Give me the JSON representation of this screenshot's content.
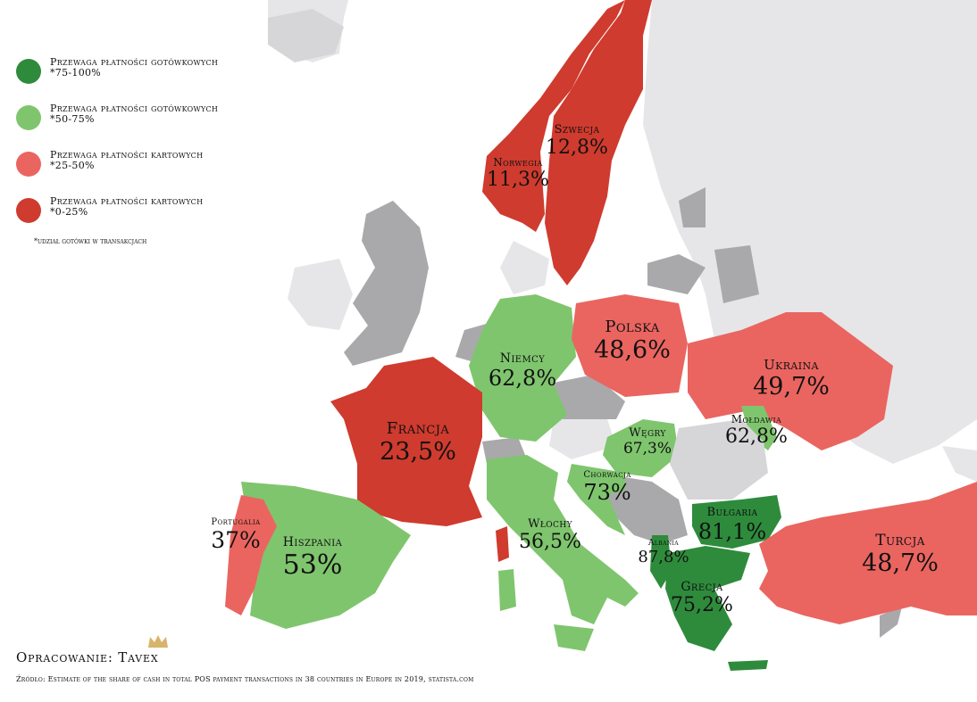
{
  "legend": {
    "items": [
      {
        "title": "Przewaga płatności gotówkowych",
        "range": "*75-100%",
        "color": "#2e8b3c"
      },
      {
        "title": "Przewaga płatności gotówkowych",
        "range": "*50-75%",
        "color": "#7fc56e"
      },
      {
        "title": "Przewaga płatności kartowych",
        "range": "*25-50%",
        "color": "#ea6560"
      },
      {
        "title": "Przewaga płatności kartowych",
        "range": "*0-25%",
        "color": "#cf3b2e"
      }
    ],
    "note": "*udział gotówki w transakcjach"
  },
  "countries": [
    {
      "name": "Norwegia",
      "value": "11,3%"
    },
    {
      "name": "Szwecja",
      "value": "12,8%"
    },
    {
      "name": "Polska",
      "value": "48,6%"
    },
    {
      "name": "Niemcy",
      "value": "62,8%"
    },
    {
      "name": "Ukraina",
      "value": "49,7%"
    },
    {
      "name": "Francja",
      "value": "23,5%"
    },
    {
      "name": "Mołdawia",
      "value": "62,8%"
    },
    {
      "name": "Węgry",
      "value": "67,3%"
    },
    {
      "name": "Chorwacja",
      "value": "73%"
    },
    {
      "name": "Bułgaria",
      "value": "81,1%"
    },
    {
      "name": "Portugalia",
      "value": "37%"
    },
    {
      "name": "Hiszpania",
      "value": "53%"
    },
    {
      "name": "Włochy",
      "value": "56,5%"
    },
    {
      "name": "Albania",
      "value": "87,8%"
    },
    {
      "name": "Turcja",
      "value": "48,7%"
    },
    {
      "name": "Grecja",
      "value": "75,2%"
    }
  ],
  "credit": "Opracowanie: Tavex",
  "source": "Źródło: Estimate of the share of cash in total POS payment transactions in 38 countries in Europe in 2019, statista.com",
  "colors": {
    "nodata_light": "#e6e6e8",
    "nodata_dark": "#a9a9ab",
    "crown": "#d8b36a"
  }
}
